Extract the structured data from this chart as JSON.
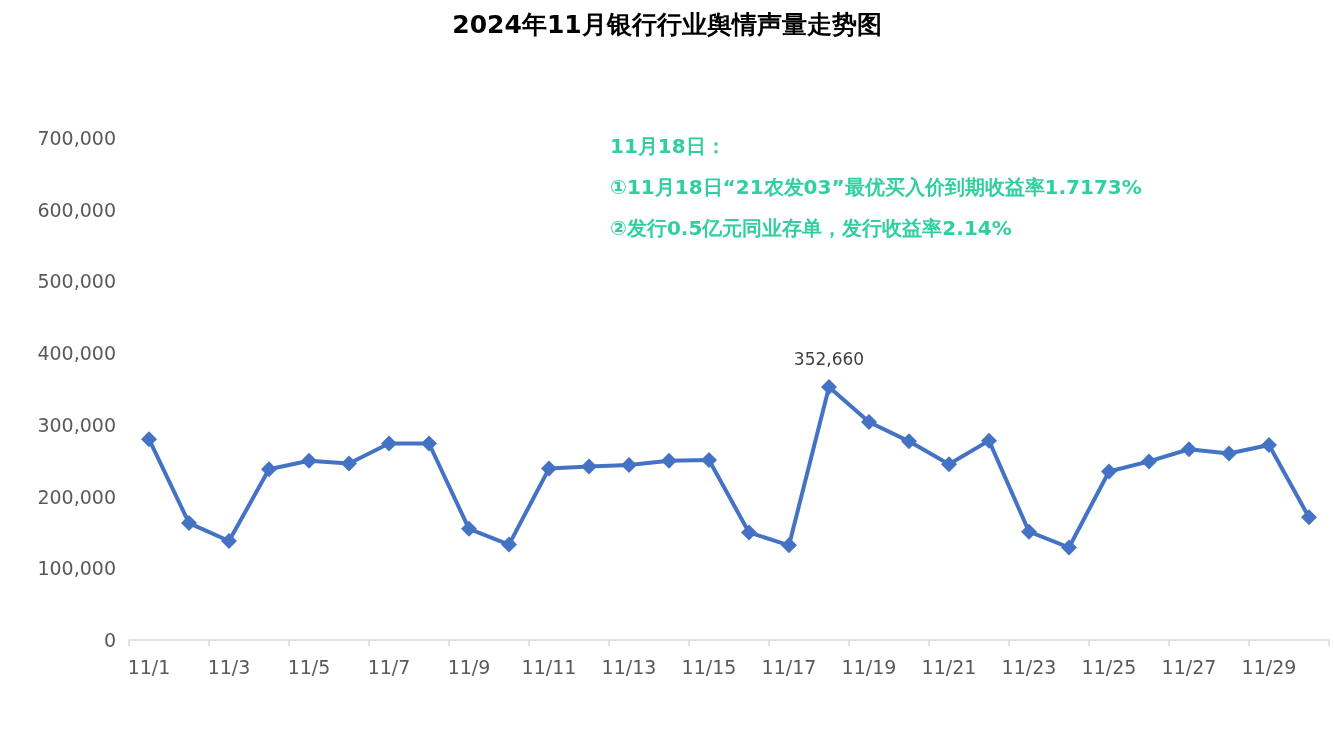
{
  "chart_data": {
    "type": "line",
    "title": "2024年11月银行行业舆情声量走势图",
    "annotations": [
      "11月18日：",
      "①11月18日“21农发03”最优买入价到期收益率1.7173%",
      "②发行0.5亿元同业存单，发行收益率2.14%"
    ],
    "categories": [
      "11/1",
      null,
      "11/3",
      null,
      "11/5",
      null,
      "11/7",
      null,
      "11/9",
      null,
      "11/11",
      null,
      "11/13",
      null,
      "11/15",
      null,
      "11/17",
      null,
      "11/19",
      null,
      "11/21",
      null,
      "11/23",
      null,
      "11/25",
      null,
      "11/27",
      null,
      "11/29",
      null
    ],
    "series": [
      {
        "color": "#4472c4",
        "values": [
          280000,
          163000,
          138000,
          238000,
          250000,
          246000,
          274000,
          274000,
          155000,
          133000,
          239000,
          242000,
          244000,
          250000,
          251000,
          150000,
          132000,
          352660,
          304000,
          277000,
          245000,
          278000,
          151000,
          129000,
          235000,
          249000,
          266000,
          260000,
          272000,
          171000
        ],
        "value_labels": [
          null,
          null,
          null,
          null,
          null,
          null,
          null,
          null,
          null,
          null,
          null,
          null,
          null,
          null,
          null,
          null,
          null,
          "352,660",
          null,
          null,
          null,
          null,
          null,
          null,
          null,
          null,
          null,
          null,
          null,
          null
        ]
      }
    ],
    "ylim": [
      0,
      700000
    ],
    "yticks": [
      0,
      {
        "value": 100000,
        "label": "100,000"
      },
      {
        "value": 200000,
        "label": "200,000"
      },
      {
        "value": 300000,
        "label": "300,000"
      },
      {
        "value": 400000,
        "label": "400,000"
      },
      {
        "value": 500000,
        "label": "500,000"
      },
      {
        "value": 600000,
        "label": "600,000"
      },
      {
        "value": 700000,
        "label": "700,000"
      }
    ],
    "marker": "diamond",
    "line_style": "solid",
    "legend": false,
    "grid": false
  }
}
